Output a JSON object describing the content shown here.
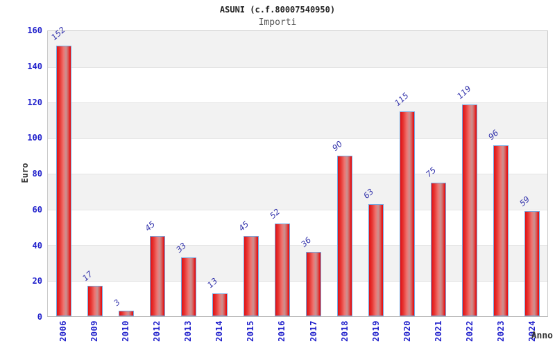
{
  "header": {
    "title": "ASUNI (c.f.80007540950)",
    "subtitle": "Importi"
  },
  "axes": {
    "y_label": "Euro",
    "x_label": "Anno",
    "y_ticks": [
      0,
      20,
      40,
      60,
      80,
      100,
      120,
      140,
      160
    ]
  },
  "colors": {
    "tick_text": "#2222cc",
    "value_label_text": "#3030aa",
    "bar_red": "#e41315",
    "bar_highlight": "#ca9191",
    "bar_border": "#74a9e2",
    "band_gray": "#f2f2f2",
    "band_white": "#ffffff",
    "title_text": "#222222",
    "subtitle_text": "#555555",
    "axis_title_text": "#333333"
  },
  "chart_data": {
    "type": "bar",
    "title": "ASUNI (c.f.80007540950)",
    "subtitle": "Importi",
    "xlabel": "Anno",
    "ylabel": "Euro",
    "categories": [
      "2006",
      "2009",
      "2010",
      "2012",
      "2013",
      "2014",
      "2015",
      "2016",
      "2017",
      "2018",
      "2019",
      "2020",
      "2021",
      "2022",
      "2023",
      "2024"
    ],
    "values": [
      152,
      17,
      3,
      45,
      33,
      13,
      45,
      52,
      36,
      90,
      63,
      115,
      75,
      119,
      96,
      59
    ],
    "ylim": [
      0,
      160
    ],
    "y_tick_step": 20,
    "grid": "horizontal-bands-alternating",
    "legend": "none",
    "bar_labels_rotated": true,
    "x_labels_rotated": true
  }
}
